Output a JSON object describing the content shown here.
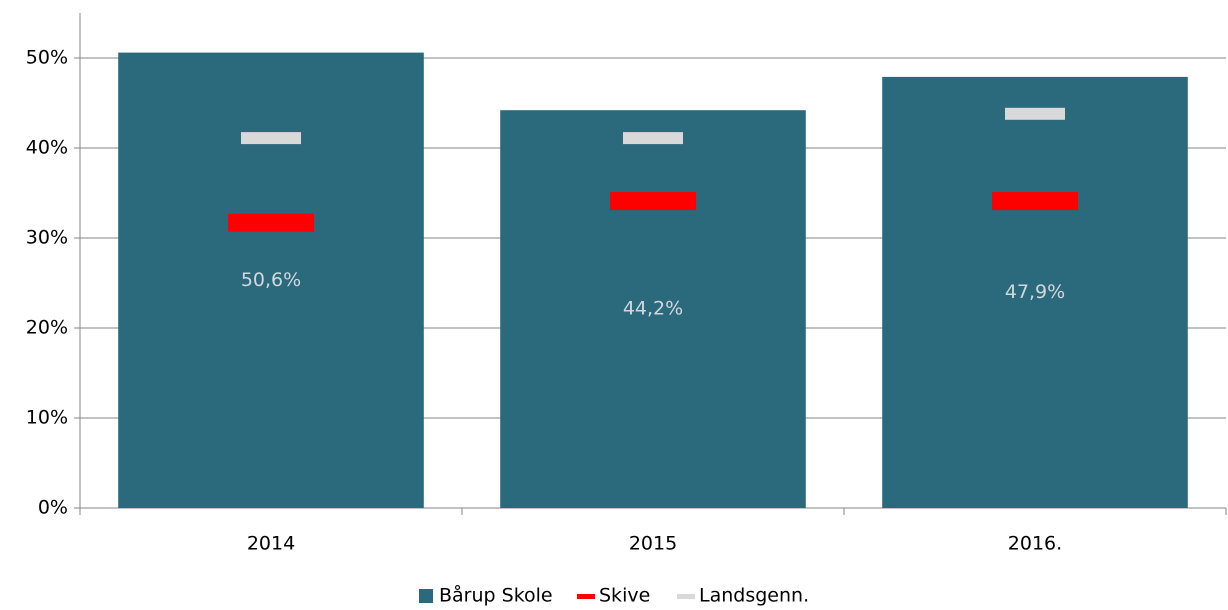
{
  "chart_data": {
    "type": "bar",
    "categories": [
      "2014",
      "2015",
      "2016."
    ],
    "series": [
      {
        "name": "Bårup Skole",
        "type": "bar",
        "color": "#2a6a7c",
        "values": [
          50.6,
          44.2,
          47.9
        ],
        "value_labels": [
          "50,6%",
          "44,2%",
          "47,9%"
        ],
        "label_color": "#d0d8dc"
      },
      {
        "name": "Skive",
        "type": "dash",
        "color": "#ff0000",
        "values": [
          31.7,
          34.1,
          34.1
        ]
      },
      {
        "name": "Landsgenn.",
        "type": "dash",
        "color": "#d9d9d9",
        "values": [
          41.1,
          41.1,
          43.8
        ]
      }
    ],
    "ylim": [
      0,
      55
    ],
    "yticks": [
      {
        "value": 0,
        "label": "0%"
      },
      {
        "value": 10,
        "label": "10%"
      },
      {
        "value": 20,
        "label": "20%"
      },
      {
        "value": 30,
        "label": "30%"
      },
      {
        "value": 40,
        "label": "40%"
      },
      {
        "value": 50,
        "label": "50%"
      }
    ],
    "grid": true,
    "legend": "bottom"
  }
}
